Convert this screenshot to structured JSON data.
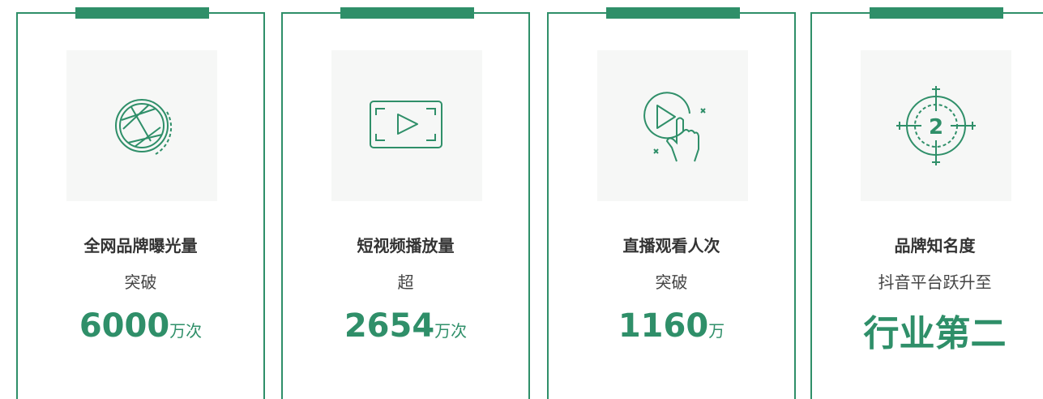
{
  "cards": [
    {
      "title": "全网品牌曝光量",
      "prefix": "突破",
      "value": 6000,
      "unit": "万次"
    },
    {
      "title": "短视频播放量",
      "prefix": "超",
      "value": 2654,
      "unit": "万次"
    },
    {
      "title": "直播观看人次",
      "prefix": "突破",
      "value": 1160,
      "unit": "万"
    },
    {
      "title": "品牌知名度",
      "prefix": "抖音平台跃升至",
      "value": "行业第二",
      "icon_text": "2"
    }
  ]
}
